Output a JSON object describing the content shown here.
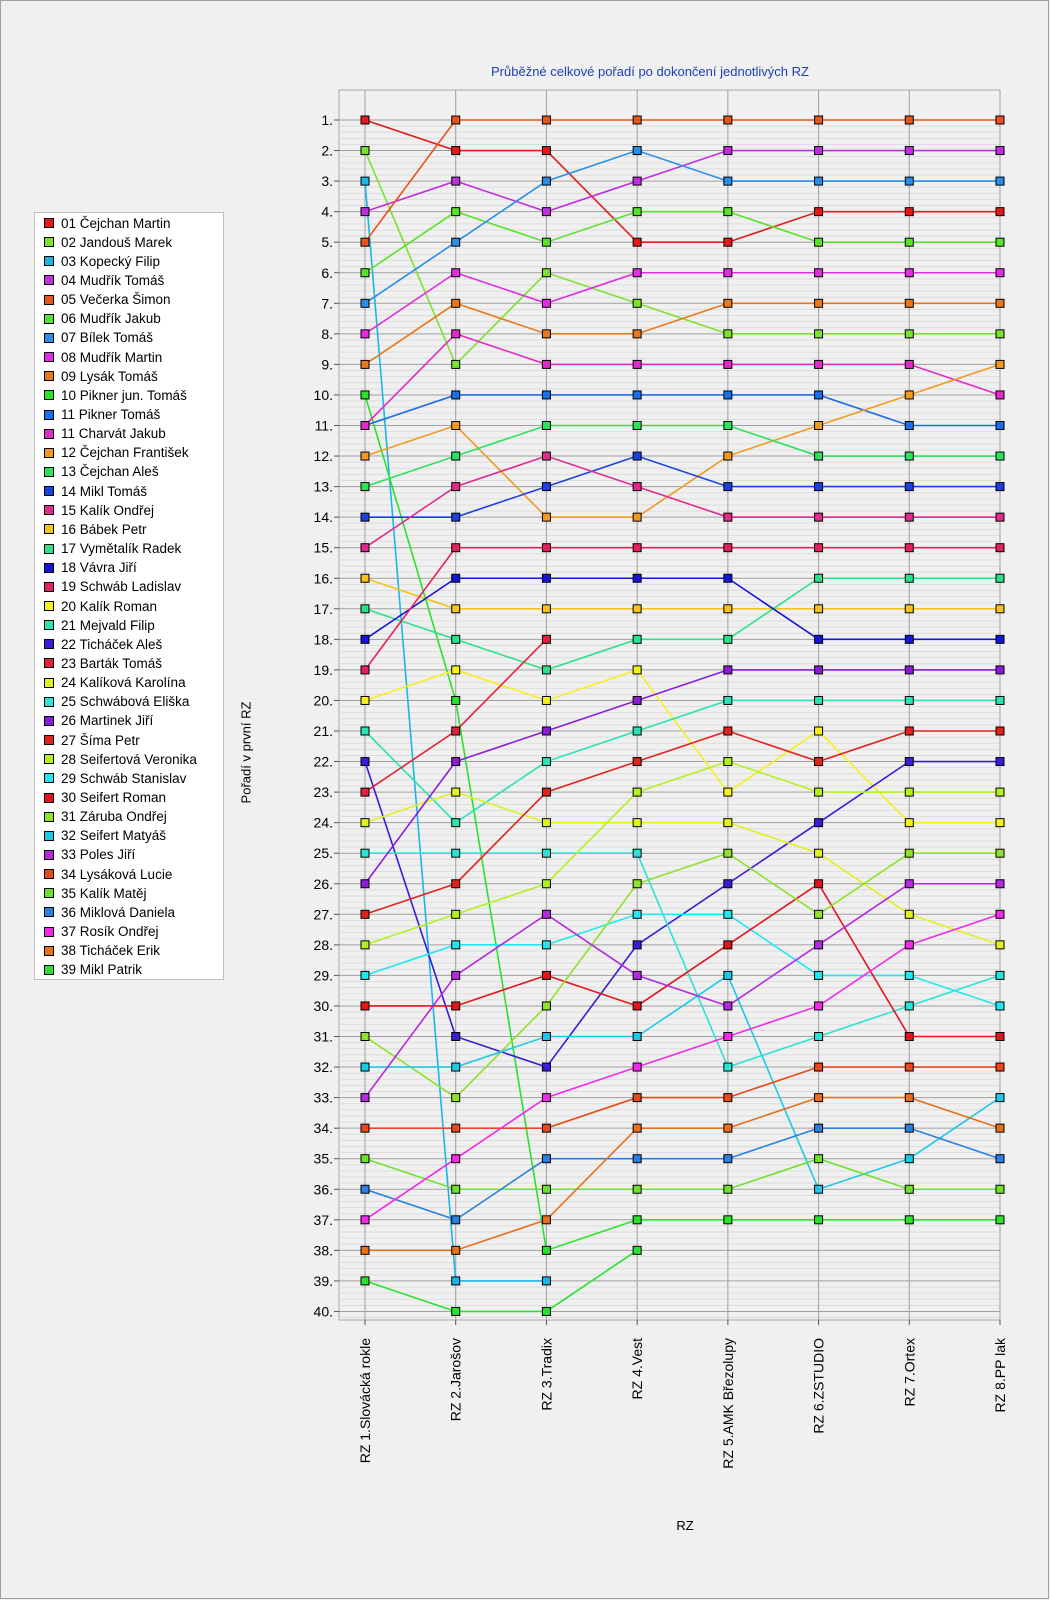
{
  "chart_data": {
    "type": "line",
    "title": "Průběžné celkové pořadí po dokončení jednotlivých RZ",
    "xlabel": "RZ",
    "ylabel": "Pořadí v první RZ",
    "y_inverted": true,
    "ylim": [
      1,
      40
    ],
    "grid": true,
    "legend": "left",
    "categories": [
      "RZ 1.Slovácká rokle",
      "RZ 2.Jarošov",
      "RZ 3.Tradix",
      "RZ 4.Vest",
      "RZ 5.AMK Březolupy",
      "RZ 6.ZSTUDIO",
      "RZ 7.Ortex",
      "RZ 8.PP lak"
    ],
    "y_ticks": [
      "1.",
      "2.",
      "3.",
      "4.",
      "5.",
      "6.",
      "7.",
      "8.",
      "9.",
      "10.",
      "11.",
      "12.",
      "13.",
      "14.",
      "15.",
      "16.",
      "17.",
      "18.",
      "19.",
      "20.",
      "21.",
      "22.",
      "23.",
      "24.",
      "25.",
      "26.",
      "27.",
      "28.",
      "29.",
      "30.",
      "31.",
      "32.",
      "33.",
      "34.",
      "35.",
      "36.",
      "37.",
      "38.",
      "39.",
      "40."
    ],
    "series": [
      {
        "name": "01 Čejchan Martin",
        "color": "#e21a1a",
        "values": [
          1,
          2,
          2,
          5,
          5,
          4,
          4,
          4
        ]
      },
      {
        "name": "02 Jandouš Marek",
        "color": "#7de22d",
        "values": [
          2,
          9,
          6,
          7,
          8,
          8,
          8,
          8
        ]
      },
      {
        "name": "03 Kopecký Filip",
        "color": "#1bb6e8",
        "values": [
          3,
          39,
          39,
          null,
          null,
          null,
          null,
          null
        ]
      },
      {
        "name": "04 Mudřík Tomáš",
        "color": "#c12ee0",
        "values": [
          4,
          3,
          4,
          3,
          2,
          2,
          2,
          2
        ]
      },
      {
        "name": "05 Večerka Šimon",
        "color": "#e8541b",
        "values": [
          5,
          1,
          1,
          1,
          1,
          1,
          1,
          1
        ]
      },
      {
        "name": "06 Mudřík Jakub",
        "color": "#58e22a",
        "values": [
          6,
          4,
          5,
          4,
          4,
          5,
          5,
          5
        ]
      },
      {
        "name": "07 Bílek Tomáš",
        "color": "#2a8ee8",
        "values": [
          7,
          5,
          3,
          2,
          3,
          3,
          3,
          3
        ]
      },
      {
        "name": "08 Mudřík Martin",
        "color": "#e32be3",
        "values": [
          8,
          6,
          7,
          6,
          6,
          6,
          6,
          6
        ]
      },
      {
        "name": "09 Lysák Tomáš",
        "color": "#e8781b",
        "values": [
          9,
          7,
          8,
          8,
          7,
          7,
          7,
          7
        ]
      },
      {
        "name": "10 Pikner jun. Tomáš",
        "color": "#2ae22a",
        "values": [
          10,
          20,
          38,
          37,
          37,
          37,
          37,
          37
        ]
      },
      {
        "name": "11 Pikner Tomáš",
        "color": "#1b6de8",
        "values": [
          11,
          10,
          10,
          10,
          10,
          10,
          11,
          11
        ]
      },
      {
        "name": "11 Charvát Jakub",
        "color": "#e12ac6",
        "values": [
          11,
          8,
          9,
          9,
          9,
          9,
          9,
          10
        ]
      },
      {
        "name": "12 Čejchan František",
        "color": "#f09a1f",
        "values": [
          12,
          11,
          14,
          14,
          12,
          11,
          10,
          9
        ]
      },
      {
        "name": "13 Čejchan Aleš",
        "color": "#2ae25c",
        "values": [
          13,
          12,
          11,
          11,
          11,
          12,
          12,
          12
        ]
      },
      {
        "name": "14 Mikl Tomáš",
        "color": "#1b40e0",
        "values": [
          14,
          14,
          13,
          12,
          13,
          13,
          13,
          13
        ]
      },
      {
        "name": "15 Kalík Ondřej",
        "color": "#e22a8c",
        "values": [
          15,
          13,
          12,
          13,
          14,
          14,
          14,
          14
        ]
      },
      {
        "name": "16 Bábek Petr",
        "color": "#f6c21c",
        "values": [
          16,
          17,
          17,
          17,
          17,
          17,
          17,
          17
        ]
      },
      {
        "name": "17 Vymětalík Radek",
        "color": "#2ae28a",
        "values": [
          17,
          18,
          19,
          18,
          18,
          16,
          16,
          16
        ]
      },
      {
        "name": "18 Vávra Jiří",
        "color": "#1515d8",
        "values": [
          18,
          16,
          16,
          16,
          16,
          18,
          18,
          18
        ]
      },
      {
        "name": "19 Schwáb Ladislav",
        "color": "#e2225c",
        "values": [
          19,
          15,
          15,
          15,
          15,
          15,
          15,
          15
        ]
      },
      {
        "name": "20 Kalík Roman",
        "color": "#f6f01c",
        "values": [
          20,
          19,
          20,
          19,
          23,
          21,
          24,
          24
        ]
      },
      {
        "name": "21 Mejvald Filip",
        "color": "#2ae2b4",
        "values": [
          21,
          24,
          22,
          21,
          20,
          20,
          20,
          20
        ]
      },
      {
        "name": "22 Ticháček Aleš",
        "color": "#3a1cd8",
        "values": [
          22,
          31,
          32,
          28,
          26,
          24,
          22,
          22
        ]
      },
      {
        "name": "23 Barták Tomáš",
        "color": "#e2223a",
        "values": [
          23,
          21,
          18,
          null,
          null,
          null,
          null,
          null
        ]
      },
      {
        "name": "24 Kalíková Karolína",
        "color": "#e0f020",
        "values": [
          24,
          23,
          24,
          24,
          24,
          25,
          27,
          28
        ]
      },
      {
        "name": "25 Schwábová Eliška",
        "color": "#2ae2d6",
        "values": [
          25,
          25,
          25,
          25,
          32,
          31,
          30,
          29
        ]
      },
      {
        "name": "26 Martinek Jiří",
        "color": "#8a1cd8",
        "values": [
          26,
          22,
          21,
          20,
          19,
          19,
          19,
          19
        ]
      },
      {
        "name": "27 Šíma Petr",
        "color": "#e2221c",
        "values": [
          27,
          26,
          23,
          22,
          21,
          22,
          21,
          21
        ]
      },
      {
        "name": "28 Seifertová Veronika",
        "color": "#b4f020",
        "values": [
          28,
          27,
          26,
          23,
          22,
          23,
          23,
          23
        ]
      },
      {
        "name": "29 Schwáb Stanislav",
        "color": "#20e8f0",
        "values": [
          29,
          28,
          28,
          27,
          27,
          29,
          29,
          30
        ]
      },
      {
        "name": "30 Seifert Roman",
        "color": "#e2141c",
        "values": [
          30,
          30,
          29,
          30,
          28,
          26,
          31,
          31
        ]
      },
      {
        "name": "31 Záruba Ondřej",
        "color": "#8ee22a",
        "values": [
          31,
          33,
          30,
          26,
          25,
          27,
          25,
          25
        ]
      },
      {
        "name": "32 Seifert Matyáš",
        "color": "#1ec8e8",
        "values": [
          32,
          32,
          31,
          31,
          29,
          36,
          35,
          33
        ]
      },
      {
        "name": "33 Poles Jiří",
        "color": "#b42ae0",
        "values": [
          33,
          29,
          27,
          29,
          30,
          28,
          26,
          26
        ]
      },
      {
        "name": "34 Lysáková Lucie",
        "color": "#e8481b",
        "values": [
          34,
          34,
          34,
          33,
          33,
          32,
          32,
          32
        ]
      },
      {
        "name": "35 Kalík Matěj",
        "color": "#6ee22a",
        "values": [
          35,
          36,
          36,
          36,
          36,
          35,
          36,
          36
        ]
      },
      {
        "name": "36 Miklová Daniela",
        "color": "#2a80e0",
        "values": [
          36,
          37,
          35,
          35,
          35,
          34,
          34,
          35
        ]
      },
      {
        "name": "37 Rosík Ondřej",
        "color": "#f02ae8",
        "values": [
          37,
          35,
          33,
          32,
          31,
          30,
          28,
          27
        ]
      },
      {
        "name": "38 Ticháček Erik",
        "color": "#e8701b",
        "values": [
          38,
          38,
          37,
          34,
          34,
          33,
          33,
          34
        ]
      },
      {
        "name": "39 Mikl Patrik",
        "color": "#28e232",
        "values": [
          39,
          40,
          40,
          38,
          null,
          null,
          null,
          null
        ]
      }
    ]
  }
}
